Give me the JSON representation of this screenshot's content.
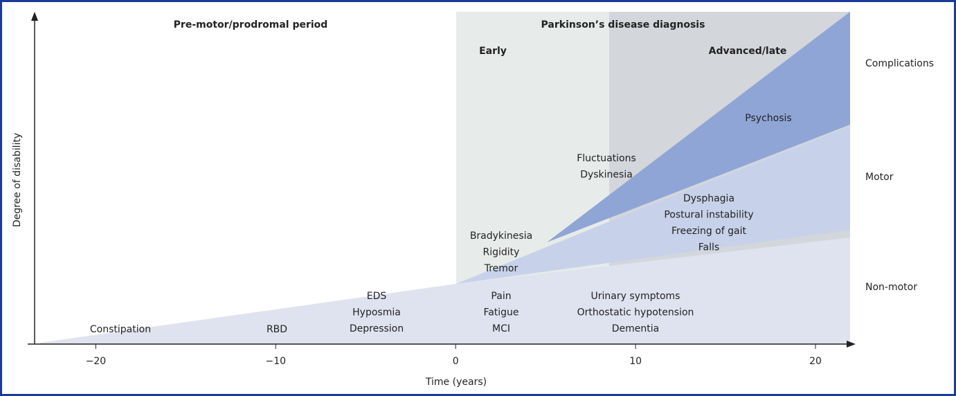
{
  "x_axis": {
    "label": "Time (years)",
    "xlim": [
      -23.4,
      22
    ],
    "xticks": [
      {
        "value": -20,
        "label": "−20"
      },
      {
        "value": -10,
        "label": "−10"
      },
      0,
      10,
      20
    ]
  },
  "y_axis": {
    "label": "Degree of disability"
  },
  "periods": {
    "prodromal": "Pre-motor/prodromal period",
    "diagnosis": "Parkinson’s disease diagnosis",
    "early": "Early",
    "advanced": "Advanced/late"
  },
  "bands": {
    "complications": "Complications",
    "motor": "Motor",
    "non_motor": "Non-motor"
  },
  "symptoms": {
    "constipation": "Constipation",
    "rbd": "RBD",
    "eds": [
      "EDS",
      "Hyposmia",
      "Depression"
    ],
    "early_motor": [
      "Bradykinesia",
      "Rigidity",
      "Tremor"
    ],
    "early_non_motor": [
      "Pain",
      "Fatigue",
      "MCI"
    ],
    "late_non_motor": [
      "Urinary symptoms",
      "Orthostatic hypotension",
      "Dementia"
    ],
    "late_motor": [
      "Dysphagia",
      "Postural instability",
      "Freezing of gait",
      "Falls"
    ],
    "complications": [
      "Fluctuations",
      "Dyskinesia"
    ],
    "psychosis": "Psychosis"
  }
}
